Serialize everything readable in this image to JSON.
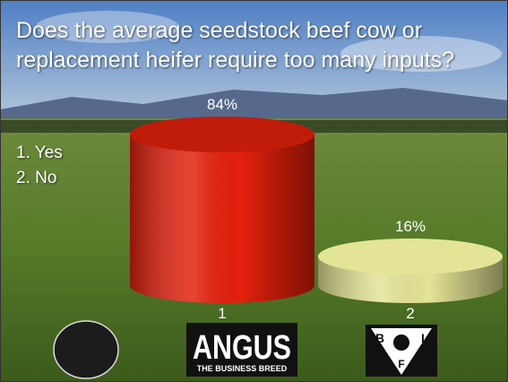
{
  "chart_data": {
    "type": "cylinder-bar",
    "title": "Does the average seedstock beef cow or replacement heifer require too many inputs?",
    "options": [
      "1. Yes",
      "2. No"
    ],
    "categories": [
      "1",
      "2"
    ],
    "values": [
      84,
      16
    ],
    "value_labels": [
      "84%",
      "16%"
    ],
    "colors": [
      "#e3200c",
      "#e4e496"
    ]
  },
  "logos": {
    "angus": "ANGUS",
    "angus_tagline": "THE BUSINESS BREED",
    "bif": [
      "B",
      "I",
      "F"
    ]
  }
}
